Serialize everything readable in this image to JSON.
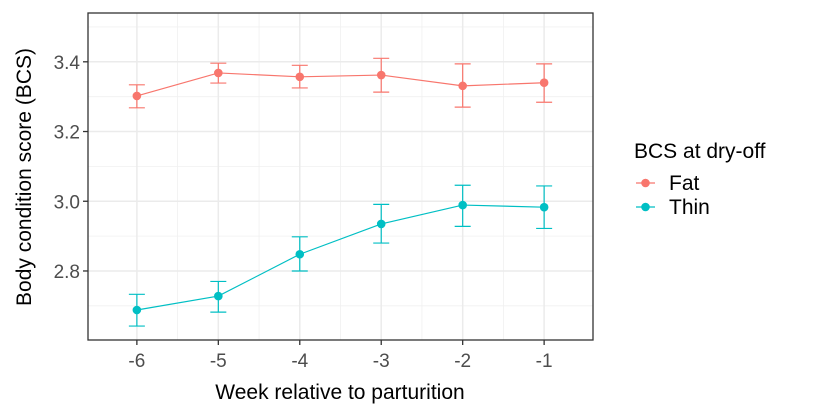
{
  "chart_data": {
    "type": "line",
    "title": "",
    "xlabel": "Week relative to parturition",
    "ylabel": "Body condition score (BCS)",
    "x": [
      -6,
      -5,
      -4,
      -3,
      -2,
      -1
    ],
    "x_tick_labels": [
      "-6",
      "-5",
      "-4",
      "-3",
      "-2",
      "-1"
    ],
    "y_ticks": [
      2.8,
      3.0,
      3.2,
      3.4
    ],
    "y_tick_labels": [
      "2.8",
      "3.0",
      "3.2",
      "3.4"
    ],
    "xlim": [
      -6.6,
      -0.4
    ],
    "ylim": [
      2.602,
      3.54
    ],
    "grid": true,
    "legend": {
      "title": "BCS at dry-off",
      "placement": "right"
    },
    "series": [
      {
        "name": "Fat",
        "color": "#F8766D",
        "values": [
          3.302,
          3.368,
          3.357,
          3.362,
          3.331,
          3.34
        ],
        "error_low": [
          3.268,
          3.339,
          3.325,
          3.313,
          3.27,
          3.284
        ],
        "error_high": [
          3.334,
          3.396,
          3.39,
          3.41,
          3.394,
          3.394
        ]
      },
      {
        "name": "Thin",
        "color": "#00BFC4",
        "values": [
          2.688,
          2.728,
          2.848,
          2.935,
          2.989,
          2.983
        ],
        "error_low": [
          2.642,
          2.682,
          2.8,
          2.88,
          2.928,
          2.922
        ],
        "error_high": [
          2.733,
          2.77,
          2.898,
          2.991,
          3.046,
          3.044
        ]
      }
    ]
  }
}
